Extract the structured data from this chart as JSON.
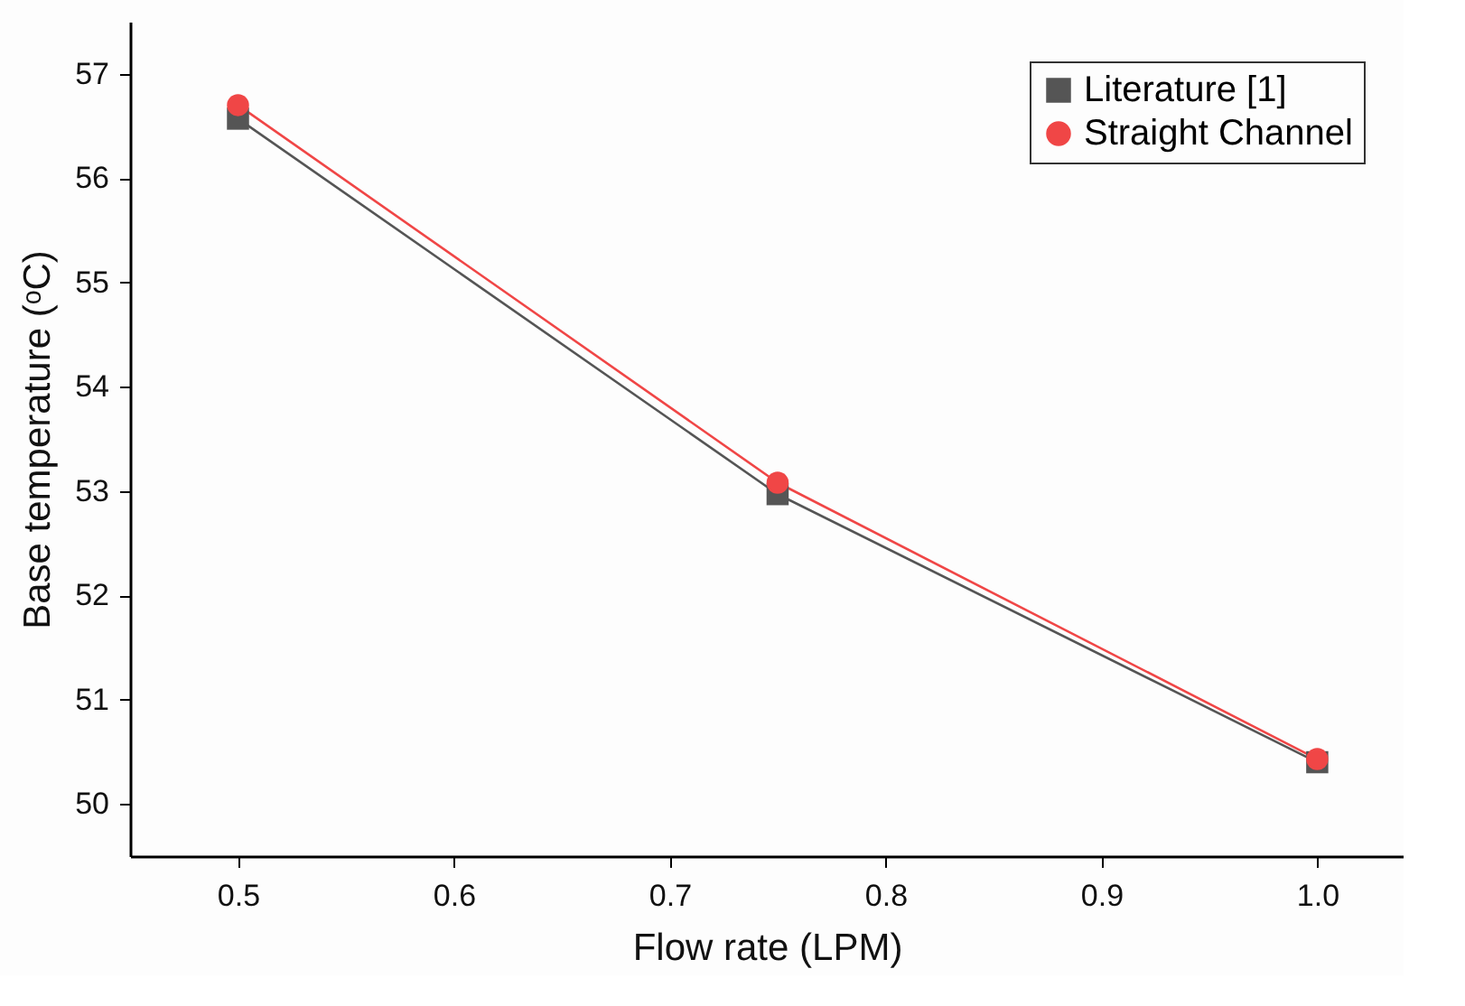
{
  "chart_data": {
    "type": "line",
    "xlabel": "Flow rate (LPM)",
    "ylabel": "Base temperature (ᵒC)",
    "x": [
      0.5,
      0.75,
      1.0
    ],
    "series": [
      {
        "name": "Literature [1]",
        "color": "#555555",
        "marker": "square",
        "values": [
          56.57,
          52.97,
          50.4
        ]
      },
      {
        "name": "Straight Channel",
        "color": "#f04646",
        "marker": "circle",
        "values": [
          56.7,
          53.08,
          50.43
        ]
      }
    ],
    "xlim": [
      0.45,
      1.04
    ],
    "xticks": [
      {
        "value": 0.5,
        "label": "0.5"
      },
      {
        "value": 0.6,
        "label": "0.6"
      },
      {
        "value": 0.7,
        "label": "0.7"
      },
      {
        "value": 0.8,
        "label": "0.8"
      },
      {
        "value": 0.9,
        "label": "0.9"
      },
      {
        "value": 1.0,
        "label": "1.0"
      }
    ],
    "ylim": [
      49.5,
      57.5
    ],
    "yticks": [
      50,
      51,
      52,
      53,
      54,
      55,
      56,
      57
    ],
    "grid": false,
    "legend": "top right",
    "line_style": "solid"
  }
}
